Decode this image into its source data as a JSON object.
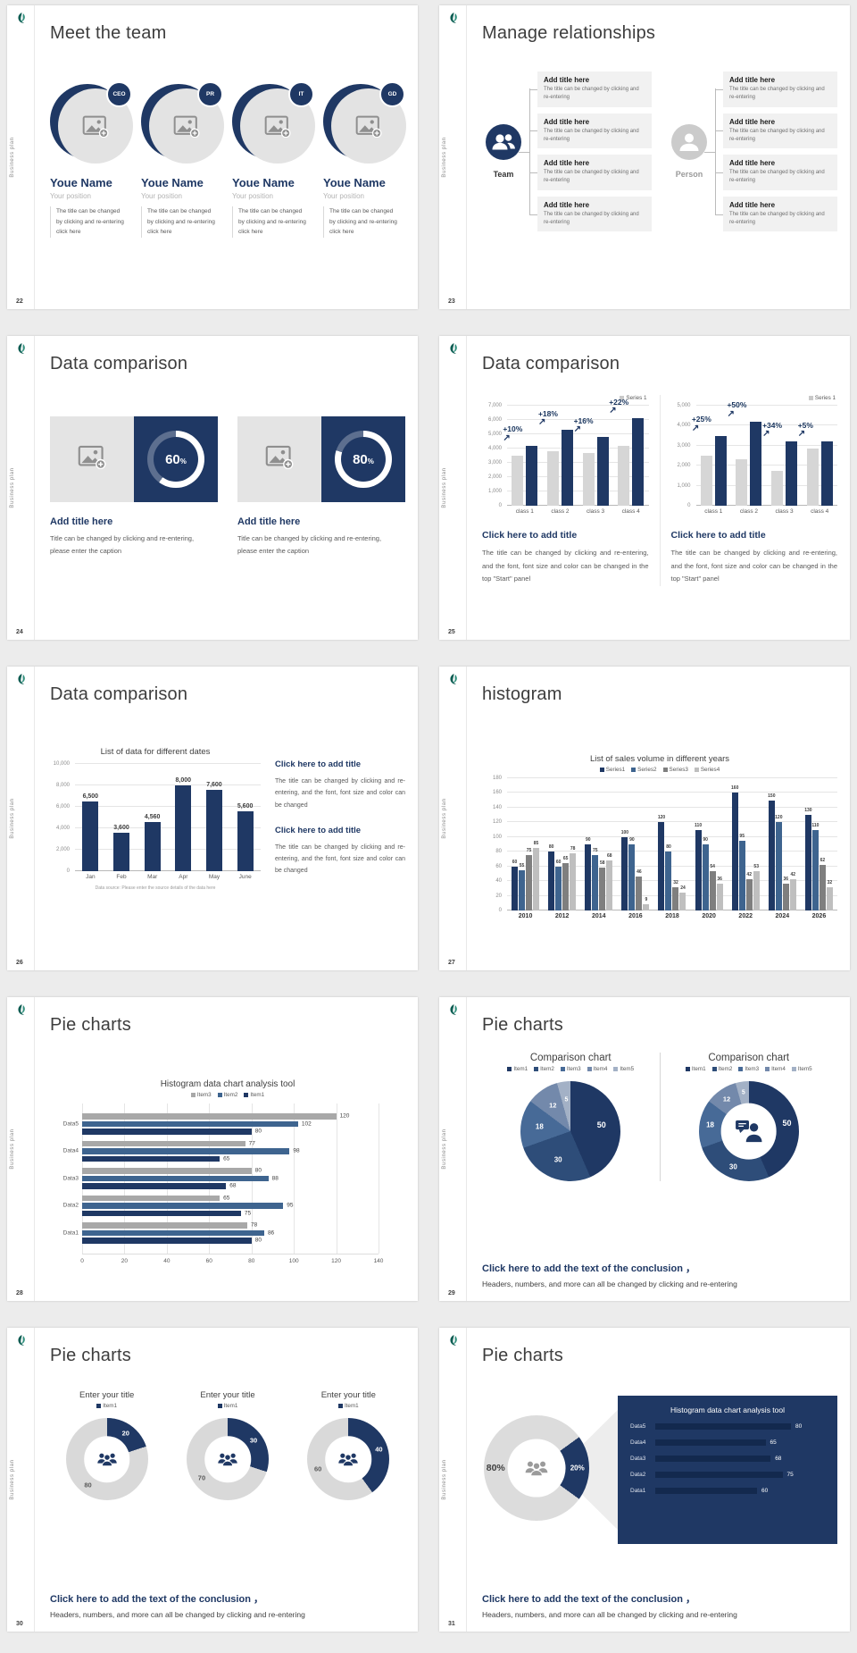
{
  "page": {
    "background": "#ececec",
    "accent": "#1f3864"
  },
  "sidebar_label": "Business plan",
  "chart_data": [
    {
      "id": "c25a",
      "type": "bar",
      "legend": [
        "Series 1"
      ],
      "legend_colors": [
        "#c9c9c9"
      ],
      "categories": [
        "class 1",
        "class 2",
        "class 3",
        "class 4"
      ],
      "series": [
        {
          "name": "base",
          "color": "#d6d6d6",
          "values": [
            3500,
            3800,
            3700,
            4200
          ]
        },
        {
          "name": "Series 1",
          "color": "#1f3864",
          "values": [
            4200,
            5300,
            4800,
            6100
          ]
        }
      ],
      "annotations": [
        "+10%",
        "+18%",
        "+16%",
        "+22%"
      ],
      "ymax": 7000,
      "ytick_labels": [
        "7,000",
        "6,000",
        "5,000",
        "4,000",
        "3,000",
        "2,000",
        "1,000",
        "0"
      ]
    },
    {
      "id": "c25b",
      "type": "bar",
      "legend": [
        "Series 1"
      ],
      "legend_colors": [
        "#c9c9c9"
      ],
      "categories": [
        "class 1",
        "class 2",
        "class 3",
        "class 4"
      ],
      "series": [
        {
          "name": "base",
          "color": "#d6d6d6",
          "values": [
            2500,
            2300,
            1750,
            2850
          ]
        },
        {
          "name": "Series 1",
          "color": "#1f3864",
          "values": [
            3500,
            4200,
            3200,
            3200
          ]
        }
      ],
      "annotations": [
        "+25%",
        "+50%",
        "+34%",
        "+5%"
      ],
      "ymax": 5000,
      "ytick_labels": [
        "5,000",
        "4,000",
        "3,000",
        "2,000",
        "1,000",
        "0"
      ]
    },
    {
      "id": "c26",
      "type": "bar",
      "title": "List of data for different dates",
      "categories": [
        "Jan",
        "Feb",
        "Mar",
        "Apr",
        "May",
        "June"
      ],
      "series": [
        {
          "name": "data",
          "color": "#1f3864",
          "values": [
            6500,
            3600,
            4560,
            8000,
            7600,
            5600
          ],
          "labels": [
            "6,500",
            "3,600",
            "4,560",
            "8,000",
            "7,600",
            "5,600"
          ]
        }
      ],
      "ymax": 10000,
      "ytick_labels": [
        "10,000",
        "8,000",
        "6,000",
        "4,000",
        "2,000",
        "0"
      ]
    },
    {
      "id": "c27",
      "type": "bar",
      "title": "List of sales volume in different years",
      "legend": [
        "Series1",
        "Series2",
        "Series3",
        "Series4"
      ],
      "legend_colors": [
        "#1f3864",
        "#3e648f",
        "#7f7f7f",
        "#bfbfbf"
      ],
      "categories": [
        "2010",
        "2012",
        "2014",
        "2016",
        "2018",
        "2020",
        "2022",
        "2024",
        "2026"
      ],
      "series": [
        {
          "name": "Series1",
          "color": "#1f3864",
          "values": [
            60,
            80,
            90,
            100,
            120,
            110,
            160,
            150,
            130
          ]
        },
        {
          "name": "Series2",
          "color": "#3e648f",
          "values": [
            55,
            60,
            75,
            90,
            80,
            90,
            95,
            120,
            110
          ]
        },
        {
          "name": "Series3",
          "color": "#7f7f7f",
          "values": [
            75,
            65,
            58,
            46,
            32,
            54,
            42,
            36,
            62
          ]
        },
        {
          "name": "Series4",
          "color": "#bfbfbf",
          "values": [
            85,
            78,
            68,
            9,
            24,
            36,
            53,
            42,
            32
          ]
        }
      ],
      "value_labels": true,
      "ymax": 180,
      "ytick_labels": [
        "180",
        "160",
        "140",
        "120",
        "100",
        "80",
        "60",
        "40",
        "20",
        "0"
      ]
    },
    {
      "id": "c28",
      "type": "bar",
      "orientation": "horizontal",
      "title": "Histogram data chart analysis tool",
      "legend": [
        "Item3",
        "Item2",
        "Item1"
      ],
      "legend_colors": [
        "#a8a8a8",
        "#3e648f",
        "#1f3864"
      ],
      "categories": [
        "Data5",
        "Data4",
        "Data3",
        "Data2",
        "Data1"
      ],
      "series": [
        {
          "name": "Item3",
          "color": "#a8a8a8",
          "values": [
            120,
            77,
            80,
            65,
            78
          ]
        },
        {
          "name": "Item2",
          "color": "#3e648f",
          "values": [
            102,
            98,
            88,
            95,
            86
          ]
        },
        {
          "name": "Item1",
          "color": "#1f3864",
          "values": [
            80,
            65,
            68,
            75,
            80
          ]
        }
      ],
      "xmax": 140,
      "xtick_labels": [
        "0",
        "20",
        "40",
        "60",
        "80",
        "100",
        "120",
        "140"
      ]
    },
    {
      "id": "c29a",
      "type": "pie",
      "title": "Comparison chart",
      "legend": [
        "Item1",
        "Item2",
        "Item3",
        "Item4",
        "Item5"
      ],
      "legend_colors": [
        "#1f3864",
        "#2e4d79",
        "#476a97",
        "#7389ab",
        "#a3b1c6"
      ],
      "values": [
        50,
        30,
        18,
        12,
        5
      ],
      "labels": [
        "50",
        "30",
        "18",
        "12",
        "5"
      ],
      "colors": [
        "#1f3864",
        "#2e4d79",
        "#476a97",
        "#7389ab",
        "#a3b1c6"
      ],
      "label_colors": [
        "#ffffff",
        "#ffffff",
        "#ffffff",
        "#ffffff",
        "#ffffff"
      ],
      "label_sizes": [
        9,
        8,
        8,
        7.5,
        7
      ],
      "size": 112,
      "label_r": 0.63
    },
    {
      "id": "c29b",
      "type": "pie",
      "donut": 0.56,
      "title": "Comparison chart",
      "legend": [
        "Item1",
        "Item2",
        "Item3",
        "Item4",
        "Item5"
      ],
      "legend_colors": [
        "#1f3864",
        "#2e4d79",
        "#476a97",
        "#7389ab",
        "#a3b1c6"
      ],
      "values": [
        50,
        30,
        18,
        12,
        5
      ],
      "labels": [
        "50",
        "30",
        "18",
        "12",
        "5"
      ],
      "colors": [
        "#1f3864",
        "#2e4d79",
        "#476a97",
        "#7389ab",
        "#a3b1c6"
      ],
      "label_colors": [
        "#ffffff",
        "#ffffff",
        "#ffffff",
        "#ffffff",
        "#ffffff"
      ],
      "label_sizes": [
        9,
        8,
        8,
        7.5,
        7
      ],
      "size": 112,
      "center_icon": "person-chat-icon"
    },
    {
      "id": "c30a",
      "type": "pie",
      "donut": 0.56,
      "title": "Enter your title",
      "legend": [
        "Item1"
      ],
      "legend_colors": [
        "#1f3864"
      ],
      "values": [
        20,
        80
      ],
      "labels": [
        "20",
        "80"
      ],
      "colors": [
        "#1f3864",
        "#d9d9d9"
      ],
      "label_colors": [
        "#ffffff",
        "#595959"
      ],
      "label_sizes": [
        7.5,
        7.5
      ],
      "size": 92,
      "center_icon": "people-icon"
    },
    {
      "id": "c30b",
      "type": "pie",
      "donut": 0.56,
      "title": "Enter your title",
      "legend": [
        "Item1"
      ],
      "legend_colors": [
        "#1f3864"
      ],
      "values": [
        30,
        70
      ],
      "labels": [
        "30",
        "70"
      ],
      "colors": [
        "#1f3864",
        "#d9d9d9"
      ],
      "label_colors": [
        "#ffffff",
        "#595959"
      ],
      "label_sizes": [
        7.5,
        7.5
      ],
      "size": 92,
      "center_icon": "people-icon"
    },
    {
      "id": "c30c",
      "type": "pie",
      "donut": 0.56,
      "title": "Enter your title",
      "legend": [
        "Item1"
      ],
      "legend_colors": [
        "#1f3864"
      ],
      "values": [
        40,
        60
      ],
      "labels": [
        "40",
        "60"
      ],
      "colors": [
        "#1f3864",
        "#d9d9d9"
      ],
      "label_colors": [
        "#ffffff",
        "#595959"
      ],
      "label_sizes": [
        7.5,
        7.5
      ],
      "size": 92,
      "center_icon": "people-icon"
    },
    {
      "id": "c31",
      "type": "pie",
      "donut": 0.55,
      "start": 54,
      "values": [
        20,
        80
      ],
      "labels": [
        "20%",
        "80%"
      ],
      "colors": [
        "#1f3864",
        "#dcdcdc"
      ],
      "label_colors": [
        "#ffffff",
        "#3f3f3f"
      ],
      "label_sizes": [
        8,
        10.5
      ],
      "size": 118,
      "center_icon": "people-icon",
      "panel": {
        "title": "Histogram data chart analysis tool",
        "max": 100,
        "rows": [
          {
            "label": "Data5",
            "value": 80
          },
          {
            "label": "Data4",
            "value": 65
          },
          {
            "label": "Data3",
            "value": 68
          },
          {
            "label": "Data2",
            "value": 75
          },
          {
            "label": "Data1",
            "value": 60
          }
        ]
      }
    }
  ],
  "s22": {
    "number": "22",
    "title": "Meet the team",
    "members": [
      {
        "badge": "CEO",
        "name": "Youe Name",
        "position": "Your position",
        "desc": "The title can be changed by clicking and re-entering click here"
      },
      {
        "badge": "PR",
        "name": "Youe Name",
        "position": "Your position",
        "desc": "The title can be changed by clicking and re-entering click here"
      },
      {
        "badge": "IT",
        "name": "Youe Name",
        "position": "Your position",
        "desc": "The title can be changed by clicking and re-entering click here"
      },
      {
        "badge": "GD",
        "name": "Youe Name",
        "position": "Your position",
        "desc": "The title can be changed by clicking and re-entering click here"
      }
    ]
  },
  "s23": {
    "number": "23",
    "title": "Manage relationships",
    "groups": [
      {
        "label": "Team",
        "items": [
          {
            "title": "Add title here",
            "body": "The title can be changed by clicking and re-entering"
          },
          {
            "title": "Add title here",
            "body": "The title can be changed by clicking and re-entering"
          },
          {
            "title": "Add title here",
            "body": "The title can be changed by clicking and re-entering"
          },
          {
            "title": "Add title here",
            "body": "The title can be changed by clicking and re-entering"
          }
        ]
      },
      {
        "label": "Person",
        "items": [
          {
            "title": "Add title here",
            "body": "The title can be changed by clicking and re-entering"
          },
          {
            "title": "Add title here",
            "body": "The title can be changed by clicking and re-entering"
          },
          {
            "title": "Add title here",
            "body": "The title can be changed by clicking and re-entering"
          },
          {
            "title": "Add title here",
            "body": "The title can be changed by clicking and re-entering"
          }
        ]
      }
    ]
  },
  "s24": {
    "number": "24",
    "title": "Data comparison",
    "cards": [
      {
        "percent": 60,
        "percent_label": "60",
        "percent_unit": "%",
        "heading": "Add title here",
        "caption": "Title can be changed by clicking and re-entering, please enter the caption"
      },
      {
        "percent": 80,
        "percent_label": "80",
        "percent_unit": "%",
        "heading": "Add title here",
        "caption": "Title can be changed by clicking and re-entering, please enter the caption"
      }
    ]
  },
  "s25": {
    "number": "25",
    "title": "Data comparison",
    "panels": [
      {
        "heading": "Click here to add title",
        "body": "The title can be changed by clicking and re-entering, and the font, font size and color can be changed in the top \"Start\" panel"
      },
      {
        "heading": "Click here to add title",
        "body": "The title can be changed by clicking and re-entering, and the font, font size and color can be changed in the top \"Start\" panel"
      }
    ]
  },
  "s26": {
    "number": "26",
    "title": "Data comparison",
    "note": "Data source: Please enter the source details of the data here",
    "blocks": [
      {
        "heading": "Click here to add title",
        "body": "The title can be changed by clicking and re-entering, and the font, font size and color can be changed"
      },
      {
        "heading": "Click here to add title",
        "body": "The title can be changed by clicking and re-entering, and the font, font size and color can be changed"
      }
    ]
  },
  "s27": {
    "number": "27",
    "title": "histogram"
  },
  "s28": {
    "number": "28",
    "title": "Pie charts"
  },
  "s29": {
    "number": "29",
    "title": "Pie charts",
    "conclusion": {
      "heading": "Click here to add the text of the conclusion ，",
      "body": "Headers, numbers, and more can all be changed by clicking and re-entering"
    }
  },
  "s30": {
    "number": "30",
    "title": "Pie charts",
    "conclusion": {
      "heading": "Click here to add the text of the conclusion ，",
      "body": "Headers, numbers, and more can all be changed by clicking and re-entering"
    }
  },
  "s31": {
    "number": "31",
    "title": "Pie charts",
    "conclusion": {
      "heading": "Click here to add the text of the conclusion ，",
      "body": "Headers, numbers, and more can all be changed by clicking and re-entering"
    }
  }
}
